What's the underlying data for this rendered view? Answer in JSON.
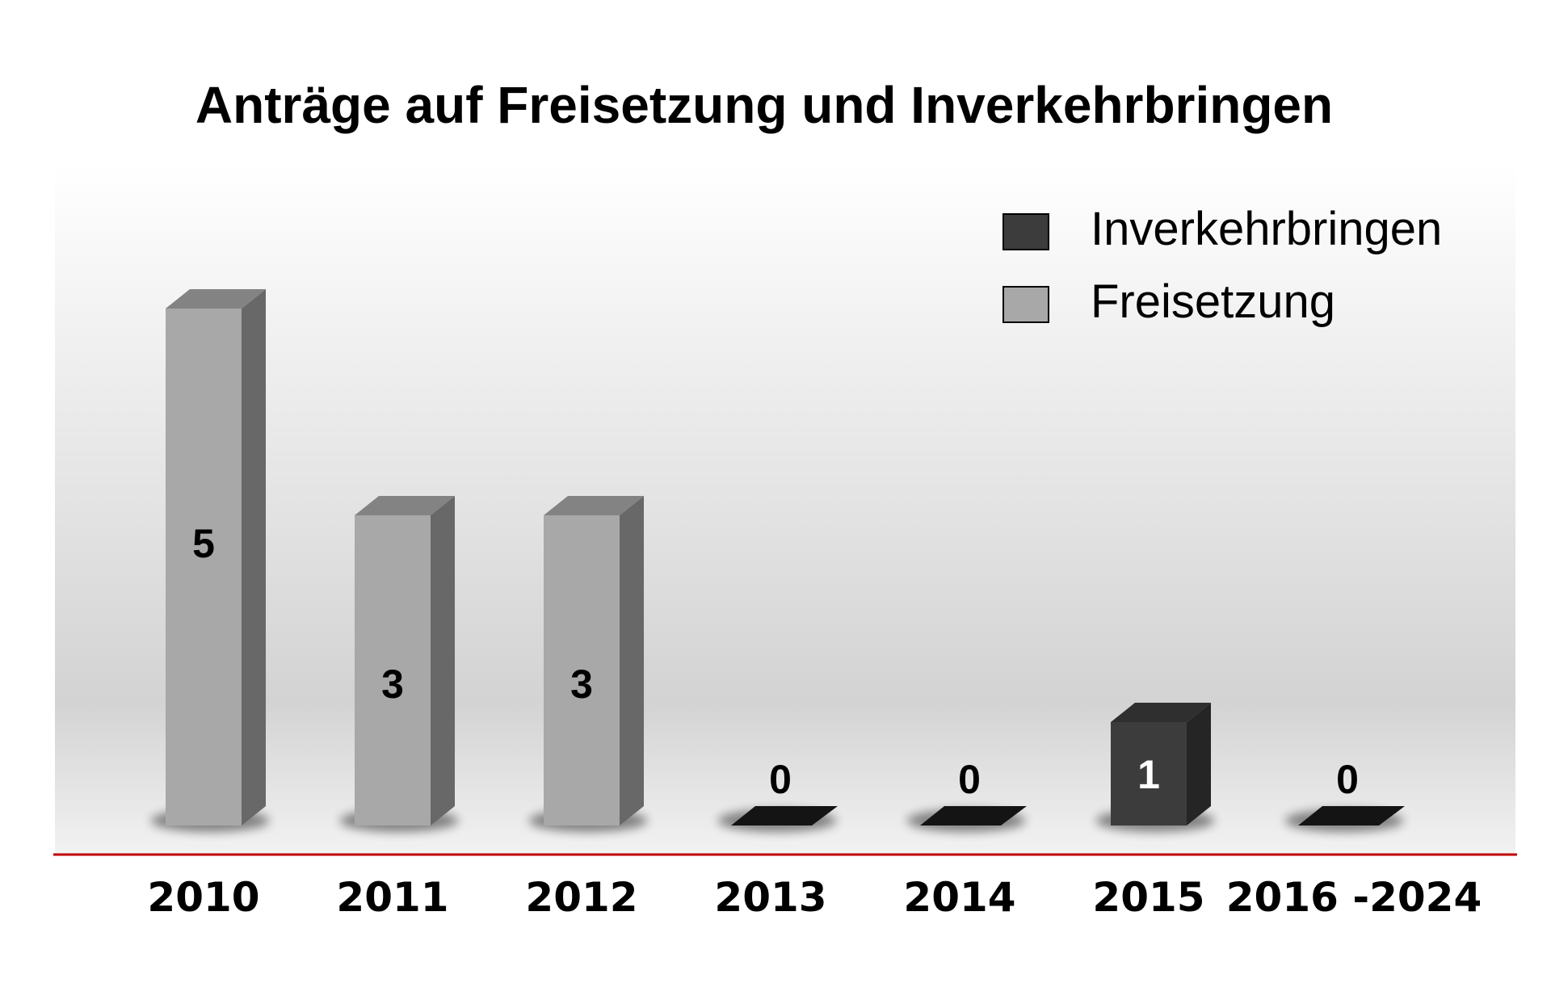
{
  "chart_data": {
    "type": "bar",
    "title": "Anträge auf Freisetzung und Inverkehrbringen",
    "categories": [
      "2010",
      "2011",
      "2012",
      "2013",
      "2014",
      "2015",
      "2016 -2024"
    ],
    "values": [
      5,
      3,
      3,
      0,
      0,
      1,
      0
    ],
    "data_labels": [
      "5",
      "3",
      "3",
      "0",
      "0",
      "1",
      "0"
    ],
    "bar_series": [
      "Freisetzung",
      "Freisetzung",
      "Freisetzung",
      "Inverkehrbringen",
      "Inverkehrbringen",
      "Inverkehrbringen",
      "Inverkehrbringen"
    ],
    "series": [
      {
        "name": "Inverkehrbringen",
        "color": "#3c3c3c",
        "values": [
          null,
          null,
          null,
          0,
          0,
          1,
          0
        ]
      },
      {
        "name": "Freisetzung",
        "color": "#a8a8a8",
        "values": [
          5,
          3,
          3,
          null,
          null,
          null,
          null
        ]
      }
    ],
    "legend": {
      "position": "top-right",
      "items": [
        "Inverkehrbringen",
        "Freisetzung"
      ]
    },
    "ylim": [
      0,
      5
    ],
    "xlabel": "",
    "ylabel": "",
    "grid": false,
    "style": "3d-columns",
    "axis_color": "#c00000"
  }
}
